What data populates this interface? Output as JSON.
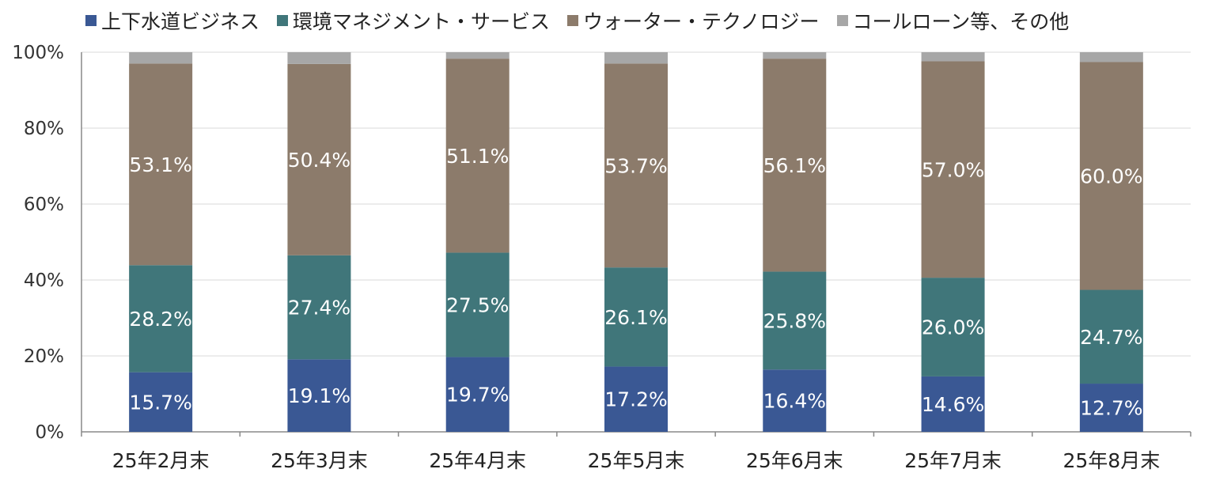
{
  "chart_data": {
    "type": "bar",
    "stacked": true,
    "categories": [
      "25年2月末",
      "25年3月末",
      "25年4月末",
      "25年5月末",
      "25年6月末",
      "25年7月末",
      "25年8月末"
    ],
    "series": [
      {
        "name": "上下水道ビジネス",
        "color": "#3a5894",
        "values": [
          15.7,
          19.1,
          19.7,
          17.2,
          16.4,
          14.6,
          12.7
        ],
        "labels": [
          "15.7%",
          "19.1%",
          "19.7%",
          "17.2%",
          "16.4%",
          "14.6%",
          "12.7%"
        ]
      },
      {
        "name": "環境マネジメント・サービス",
        "color": "#40767a",
        "values": [
          28.2,
          27.4,
          27.5,
          26.1,
          25.8,
          26.0,
          24.7
        ],
        "labels": [
          "28.2%",
          "27.4%",
          "27.5%",
          "26.1%",
          "25.8%",
          "26.0%",
          "24.7%"
        ]
      },
      {
        "name": "ウォーター・テクノロジー",
        "color": "#8c7b6b",
        "values": [
          53.1,
          50.4,
          51.1,
          53.7,
          56.1,
          57.0,
          60.0
        ],
        "labels": [
          "53.1%",
          "50.4%",
          "51.1%",
          "53.7%",
          "56.1%",
          "57.0%",
          "60.0%"
        ]
      },
      {
        "name": "コールローン等、その他",
        "color": "#a7a7a7",
        "values": [
          3.0,
          3.1,
          1.7,
          3.0,
          1.7,
          2.4,
          2.6
        ],
        "labels": []
      }
    ],
    "ylim": [
      0,
      100
    ],
    "yticks": [
      "0%",
      "20%",
      "40%",
      "60%",
      "80%",
      "100%"
    ],
    "ytick_values": [
      0,
      20,
      40,
      60,
      80,
      100
    ],
    "grid": true,
    "legend_position": "top"
  }
}
